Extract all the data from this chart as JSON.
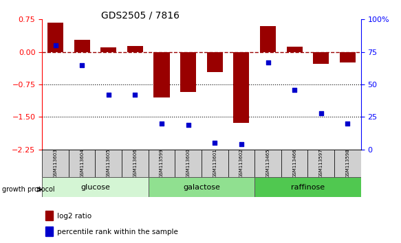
{
  "title": "GDS2505 / 7816",
  "samples": [
    "GSM113603",
    "GSM113604",
    "GSM113605",
    "GSM113606",
    "GSM113599",
    "GSM113600",
    "GSM113601",
    "GSM113602",
    "GSM113465",
    "GSM113466",
    "GSM113597",
    "GSM113598"
  ],
  "log2_ratio": [
    0.68,
    0.28,
    0.1,
    0.13,
    -1.05,
    -0.93,
    -0.47,
    -1.63,
    0.6,
    0.12,
    -0.27,
    -0.25
  ],
  "percentile_rank": [
    80,
    65,
    42,
    42,
    20,
    19,
    5,
    4,
    67,
    46,
    28,
    20
  ],
  "groups": [
    {
      "label": "glucose",
      "start": 0,
      "end": 4,
      "color": "#d4f5d4"
    },
    {
      "label": "galactose",
      "start": 4,
      "end": 8,
      "color": "#90e090"
    },
    {
      "label": "raffinose",
      "start": 8,
      "end": 12,
      "color": "#50c850"
    }
  ],
  "bar_color": "#990000",
  "scatter_color": "#0000cc",
  "ylim_left": [
    -2.25,
    0.75
  ],
  "ylim_right": [
    0,
    100
  ],
  "yticks_left": [
    0.75,
    0,
    -0.75,
    -1.5,
    -2.25
  ],
  "yticks_right": [
    100,
    75,
    50,
    25,
    0
  ],
  "hline_y": 0,
  "dotted_lines": [
    -0.75,
    -1.5
  ],
  "legend_items": [
    {
      "label": "log2 ratio",
      "color": "#990000"
    },
    {
      "label": "percentile rank within the sample",
      "color": "#0000cc"
    }
  ],
  "growth_protocol_label": "growth protocol",
  "bar_width": 0.6
}
